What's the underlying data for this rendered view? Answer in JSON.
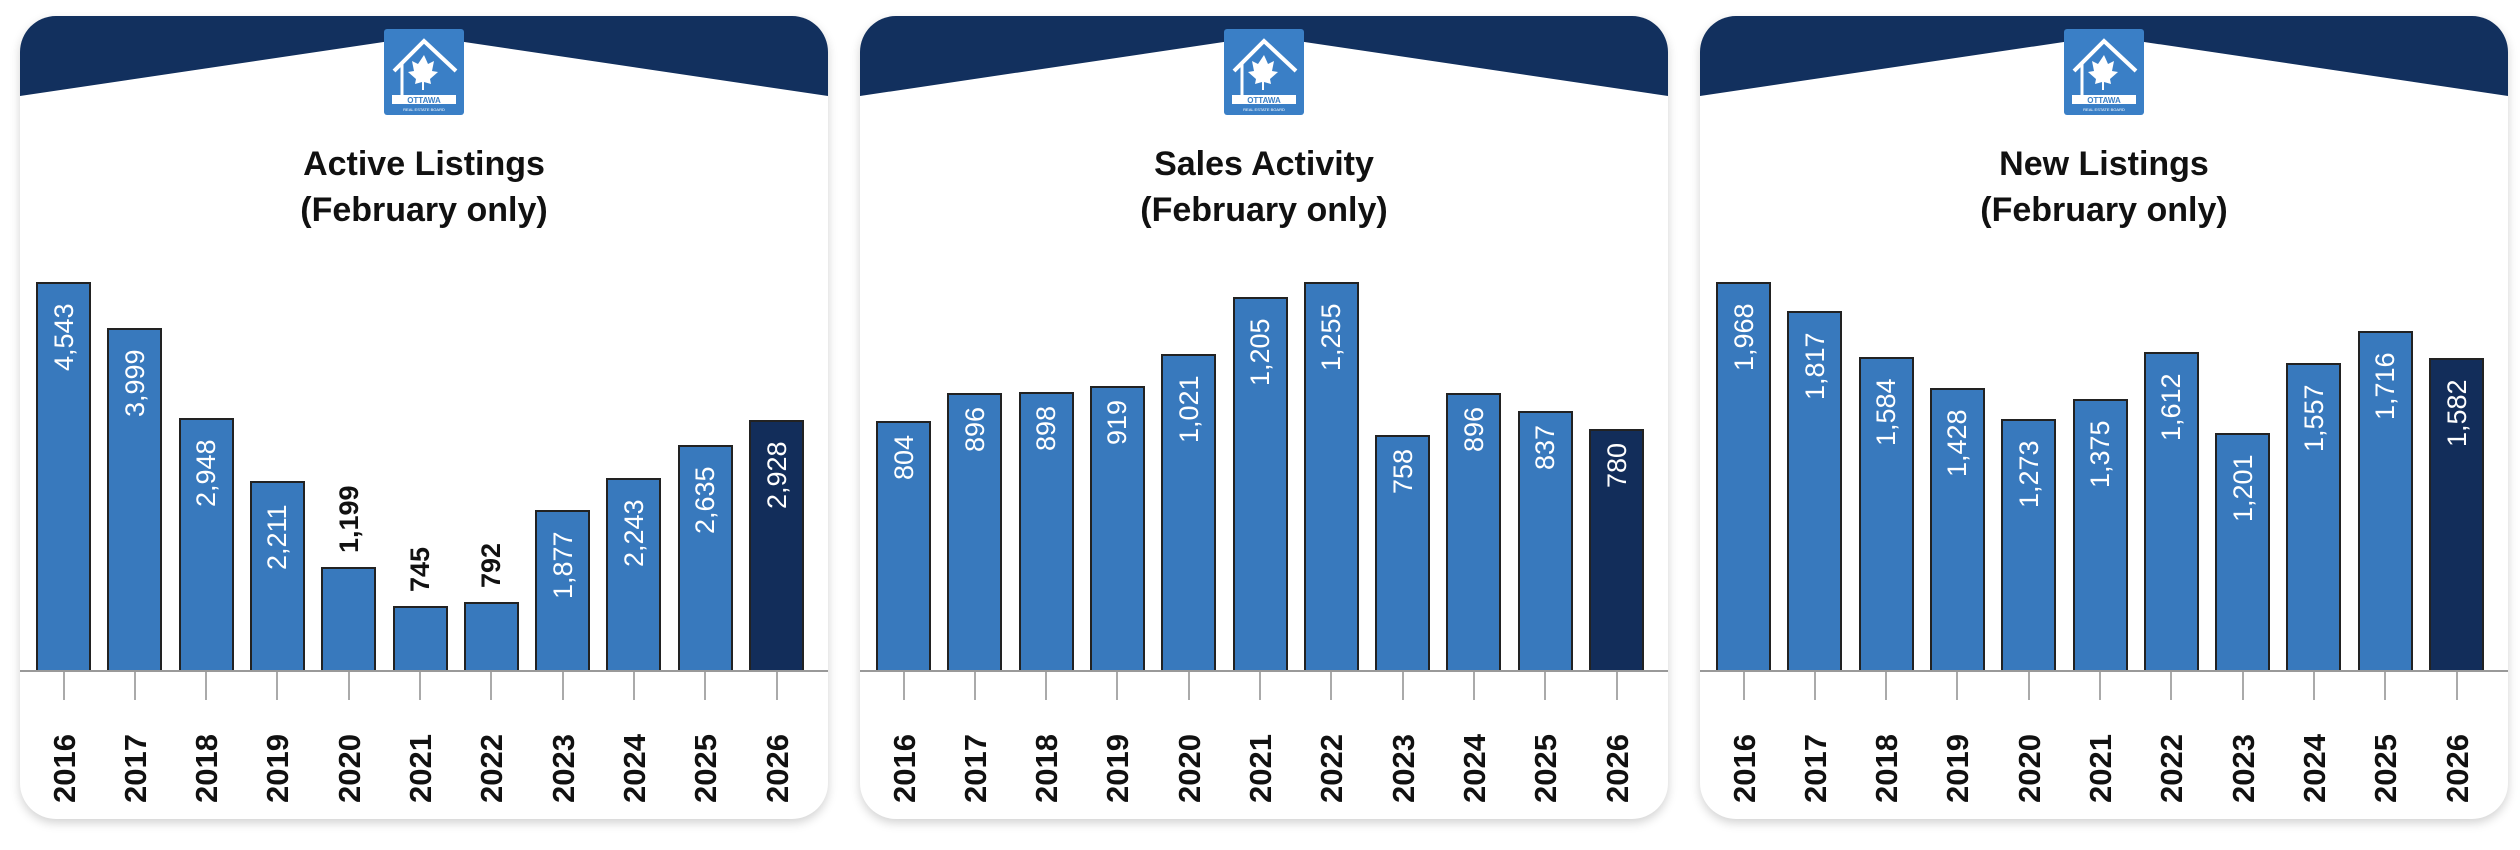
{
  "colors": {
    "bar": "#3879bd",
    "current": "#122d5a",
    "header": "#12305e"
  },
  "logo": {
    "text": "OTTAWA",
    "subtext": "REAL ESTATE BOARD"
  },
  "chart_data": [
    {
      "type": "bar",
      "title": "Active Listings",
      "subtitle": "(February only)",
      "categories": [
        "2016",
        "2017",
        "2018",
        "2019",
        "2020",
        "2021",
        "2022",
        "2023",
        "2024",
        "2025",
        "2026"
      ],
      "values": [
        4543,
        3999,
        2948,
        2211,
        1199,
        745,
        792,
        1877,
        2243,
        2635,
        2928
      ],
      "labels": [
        "4,543",
        "3,999",
        "2,948",
        "2,211",
        "1,199",
        "745",
        "792",
        "1,877",
        "2,243",
        "2,635",
        "2,928"
      ]
    },
    {
      "type": "bar",
      "title": "Sales Activity",
      "subtitle": "(February only)",
      "categories": [
        "2016",
        "2017",
        "2018",
        "2019",
        "2020",
        "2021",
        "2022",
        "2023",
        "2024",
        "2025",
        "2026"
      ],
      "values": [
        804,
        896,
        898,
        919,
        1021,
        1205,
        1255,
        758,
        896,
        837,
        780
      ],
      "labels": [
        "804",
        "896",
        "898",
        "919",
        "1,021",
        "1,205",
        "1,255",
        "758",
        "896",
        "837",
        "780"
      ]
    },
    {
      "type": "bar",
      "title": "New Listings",
      "subtitle": "(February only)",
      "categories": [
        "2016",
        "2017",
        "2018",
        "2019",
        "2020",
        "2021",
        "2022",
        "2023",
        "2024",
        "2025",
        "2026"
      ],
      "values": [
        1968,
        1817,
        1584,
        1428,
        1273,
        1375,
        1612,
        1201,
        1557,
        1716,
        1582
      ],
      "labels": [
        "1,968",
        "1,817",
        "1,584",
        "1,428",
        "1,273",
        "1,375",
        "1,612",
        "1,201",
        "1,557",
        "1,716",
        "1,582"
      ]
    }
  ]
}
